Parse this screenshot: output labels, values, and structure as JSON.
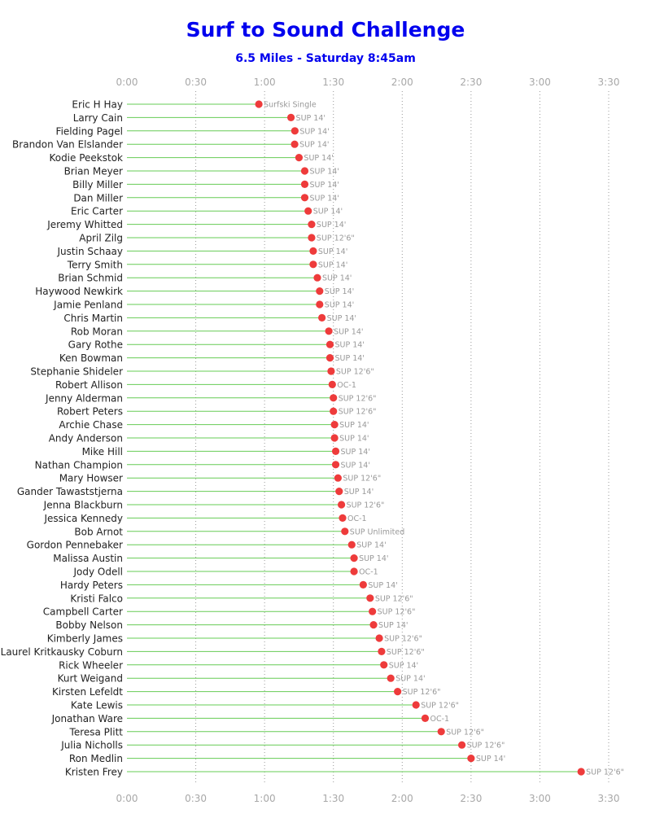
{
  "chart_data": {
    "type": "scatter",
    "title": "Surf to Sound Challenge",
    "subtitle": "6.5 Miles - Saturday 8:45am",
    "x_unit": "minutes",
    "xlim": [
      0,
      210
    ],
    "x_ticks": [
      0,
      30,
      60,
      90,
      120,
      150,
      180,
      210
    ],
    "x_tick_labels": [
      "0:00",
      "0:30",
      "1:00",
      "1:30",
      "2:00",
      "2:30",
      "3:00",
      "3:30"
    ],
    "x_ticks_top_and_bottom": true,
    "grid": "vertical dotted",
    "colors": {
      "title": "#0000ee",
      "marker": "#ee3b3b",
      "connector": "#66cc55",
      "tick_label": "#a8a8a8",
      "grid": "#999999"
    },
    "categories": [
      "Eric H Hay",
      "Larry Cain",
      "Fielding Pagel",
      "Brandon Van Elslander",
      "Kodie Peekstok",
      "Brian Meyer",
      "Billy Miller",
      "Dan Miller",
      "Eric Carter",
      "Jeremy Whitted",
      "April Zilg",
      "Justin Schaay",
      "Terry Smith",
      "Brian Schmid",
      "Haywood Newkirk",
      "Jamie Penland",
      "Chris Martin",
      "Rob Moran",
      "Gary Rothe",
      "Ken Bowman",
      "Stephanie Shideler",
      "Robert Allison",
      "Jenny Alderman",
      "Robert Peters",
      "Archie Chase",
      "Andy Anderson",
      "Mike Hill",
      "Nathan Champion",
      "Mary Howser",
      "Gander Tawaststjerna",
      "Jenna Blackburn",
      "Jessica Kennedy",
      "Bob Arnot",
      "Gordon Pennebaker",
      "Malissa Austin",
      "Jody Odell",
      "Hardy Peters",
      "Kristi Falco",
      "Campbell Carter",
      "Bobby Nelson",
      "Kimberly James",
      "Laurel Kritkausky Coburn",
      "Rick Wheeler",
      "Kurt Weigand",
      "Kirsten Lefeldt",
      "Kate Lewis",
      "Jonathan Ware",
      "Teresa Plitt",
      "Julia Nicholls",
      "Ron Medlin",
      "Kristen Frey"
    ],
    "values": [
      57.5,
      71.5,
      73.2,
      73.1,
      75.0,
      77.5,
      77.5,
      77.5,
      79.0,
      80.5,
      80.5,
      81.2,
      81.2,
      83.0,
      84.0,
      84.0,
      85.0,
      88.0,
      88.5,
      88.5,
      89.0,
      89.5,
      90.0,
      90.0,
      90.5,
      90.5,
      91.0,
      91.0,
      92.0,
      92.5,
      93.5,
      94.0,
      95.0,
      98.0,
      99.0,
      99.0,
      103.0,
      106.0,
      107.0,
      107.5,
      110.0,
      111.0,
      112.0,
      115.0,
      118.0,
      126.0,
      130.0,
      137.0,
      146.0,
      150.0,
      198.0
    ],
    "point_labels": [
      "Surfski Single",
      "SUP 14'",
      "SUP 14'",
      "SUP 14'",
      "SUP 14'",
      "SUP 14'",
      "SUP 14'",
      "SUP 14'",
      "SUP 14'",
      "SUP 14'",
      "SUP 12'6\"",
      "SUP 14'",
      "SUP 14'",
      "SUP 14'",
      "SUP 14'",
      "SUP 14'",
      "SUP 14'",
      "SUP 14'",
      "SUP 14'",
      "SUP 14'",
      "SUP 12'6\"",
      "OC-1",
      "SUP 12'6\"",
      "SUP 12'6\"",
      "SUP 14'",
      "SUP 14'",
      "SUP 14'",
      "SUP 14'",
      "SUP 12'6\"",
      "SUP 14'",
      "SUP 12'6\"",
      "OC-1",
      "SUP Unlimited",
      "SUP 14'",
      "SUP 14'",
      "OC-1",
      "SUP 14'",
      "SUP 12'6\"",
      "SUP 12'6\"",
      "SUP 14'",
      "SUP 12'6\"",
      "SUP 12'6\"",
      "SUP 14'",
      "SUP 14'",
      "SUP 12'6\"",
      "SUP 12'6\"",
      "OC-1",
      "SUP 12'6\"",
      "SUP 12'6\"",
      "SUP 14'",
      "SUP 12'6\""
    ]
  }
}
